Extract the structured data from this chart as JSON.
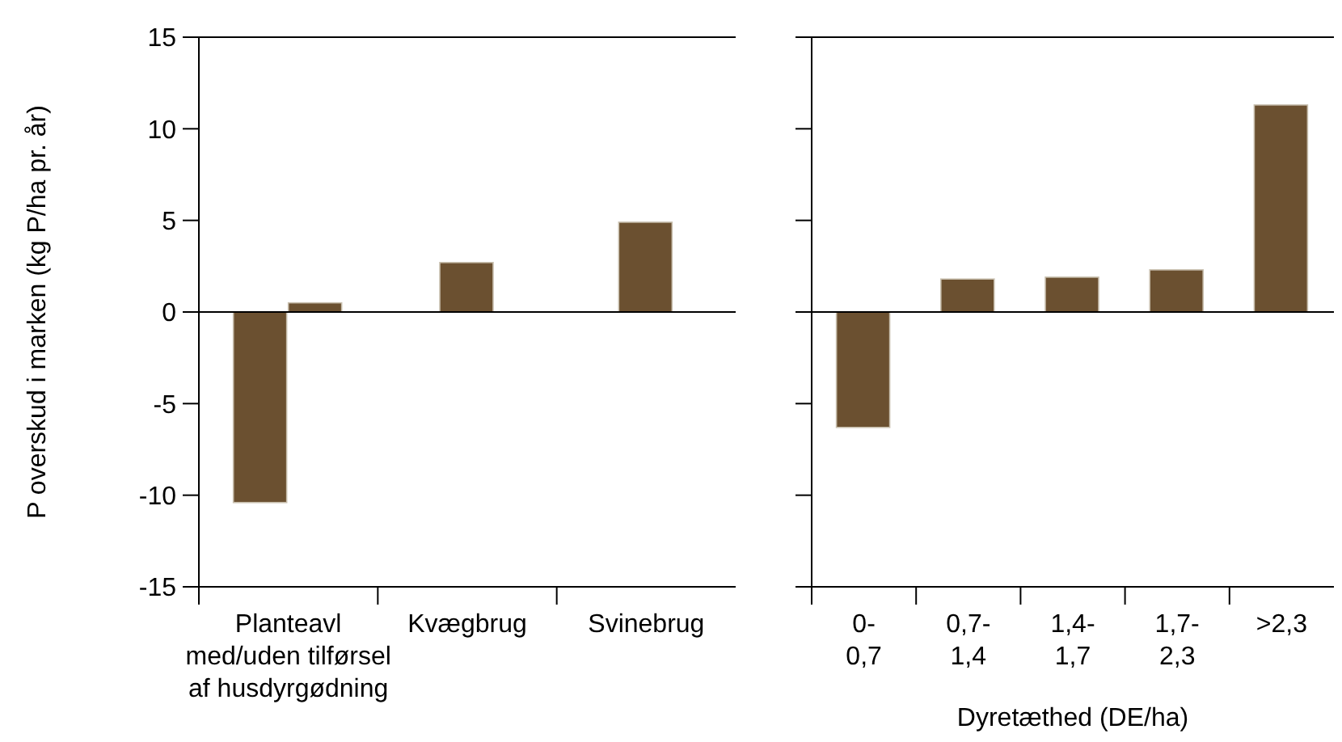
{
  "chart_data": [
    {
      "type": "bar",
      "ylabel": "P overskud i marken (kg P/ha pr. år)",
      "categories": [
        "Planteavl\nmed/uden tilførsel\naf husdyrgødning",
        "Kvægbrug",
        "Svinebrug"
      ],
      "series": [
        {
          "color": "#6b5030",
          "values": [
            -10.4,
            2.7,
            4.9
          ]
        },
        {
          "color": "#6b5030",
          "values": [
            0.5,
            null,
            null
          ]
        }
      ],
      "ylim": [
        -15,
        15
      ],
      "yticks": [
        -15,
        -10,
        -5,
        0,
        5,
        10,
        15
      ]
    },
    {
      "type": "bar",
      "xlabel": "Dyretæthed (DE/ha)",
      "categories": [
        "0-\n0,7",
        "0,7-\n1,4",
        "1,4-\n1,7",
        "1,7-\n2,3",
        ">2,3"
      ],
      "series": [
        {
          "color": "#6b5030",
          "values": [
            -6.3,
            1.8,
            1.9,
            2.3,
            11.3
          ]
        }
      ],
      "ylim": [
        -15,
        15
      ],
      "yticks": [
        -15,
        -10,
        -5,
        0,
        5,
        10,
        15
      ],
      "tick_labels": "x"
    }
  ]
}
